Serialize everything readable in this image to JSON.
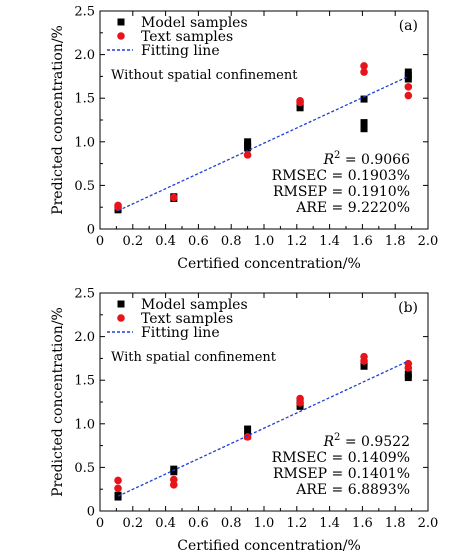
{
  "chart_data": [
    {
      "type": "scatter",
      "panel_label": "(a)",
      "condition": "Without spatial confinement",
      "xlabel": "Certified concentration/%",
      "ylabel": "Predicted concentration/%",
      "xlim": [
        0,
        2.0
      ],
      "ylim": [
        0,
        2.5
      ],
      "xticks": [
        "0",
        "0.2",
        "0.4",
        "0.6",
        "0.8",
        "1.0",
        "1.2",
        "1.4",
        "1.6",
        "1.8",
        "2.0"
      ],
      "yticks": [
        "0",
        "0.5",
        "1.0",
        "1.5",
        "2.0",
        "2.5"
      ],
      "legend": {
        "position": "top-left",
        "entries": [
          "Model samples",
          "Text samples",
          "Fitting line"
        ]
      },
      "series": [
        {
          "name": "Model samples",
          "marker": "square",
          "color": "#000000",
          "x": [
            0.11,
            0.11,
            0.45,
            0.45,
            0.9,
            0.9,
            0.9,
            1.22,
            1.22,
            1.61,
            1.61,
            1.61,
            1.88,
            1.88,
            1.88
          ],
          "y": [
            0.22,
            0.25,
            0.35,
            0.37,
            0.93,
            0.96,
            1.0,
            1.39,
            1.43,
            1.15,
            1.22,
            1.49,
            1.72,
            1.76,
            1.8
          ]
        },
        {
          "name": "Text samples",
          "marker": "circle",
          "color": "#e8141b",
          "x": [
            0.11,
            0.11,
            0.45,
            0.9,
            1.22,
            1.22,
            1.61,
            1.61,
            1.88,
            1.88
          ],
          "y": [
            0.25,
            0.27,
            0.36,
            0.85,
            1.45,
            1.47,
            1.8,
            1.87,
            1.53,
            1.63
          ]
        },
        {
          "name": "Fitting line",
          "kind": "line",
          "style": "dashed",
          "color": "#1f3fd8",
          "x": [
            0.11,
            1.88
          ],
          "y": [
            0.21,
            1.75
          ]
        }
      ],
      "stats": [
        "R² = 0.9066",
        "RMSEC = 0.1903%",
        "RMSEP = 0.1910%",
        "ARE = 9.2220%"
      ]
    },
    {
      "type": "scatter",
      "panel_label": "(b)",
      "condition": "With spatial confinement",
      "xlabel": "Certified concentration/%",
      "ylabel": "Predicted concentration/%",
      "xlim": [
        0,
        2.0
      ],
      "ylim": [
        0,
        2.5
      ],
      "xticks": [
        "0",
        "0.2",
        "0.4",
        "0.6",
        "0.8",
        "1.0",
        "1.2",
        "1.4",
        "1.6",
        "1.8",
        "2.0"
      ],
      "yticks": [
        "0",
        "0.5",
        "1.0",
        "1.5",
        "2.0",
        "2.5"
      ],
      "legend": {
        "position": "top-left",
        "entries": [
          "Model samples",
          "Text samples",
          "Fitting line"
        ]
      },
      "series": [
        {
          "name": "Model samples",
          "marker": "square",
          "color": "#000000",
          "x": [
            0.11,
            0.11,
            0.45,
            0.45,
            0.9,
            0.9,
            1.22,
            1.22,
            1.61,
            1.61,
            1.88,
            1.88
          ],
          "y": [
            0.16,
            0.18,
            0.45,
            0.48,
            0.86,
            0.94,
            1.2,
            1.25,
            1.66,
            1.7,
            1.53,
            1.57
          ]
        },
        {
          "name": "Text samples",
          "marker": "circle",
          "color": "#e8141b",
          "x": [
            0.11,
            0.11,
            0.45,
            0.45,
            0.9,
            1.22,
            1.22,
            1.61,
            1.61,
            1.88,
            1.88
          ],
          "y": [
            0.26,
            0.35,
            0.3,
            0.36,
            0.85,
            1.24,
            1.29,
            1.72,
            1.77,
            1.64,
            1.69
          ]
        },
        {
          "name": "Fitting line",
          "kind": "line",
          "style": "dashed",
          "color": "#1f3fd8",
          "x": [
            0.11,
            1.88
          ],
          "y": [
            0.17,
            1.72
          ]
        }
      ],
      "stats": [
        "R² = 0.9522",
        "RMSEC = 0.1409%",
        "RMSEP = 0.1401%",
        "ARE = 6.8893%"
      ]
    }
  ]
}
